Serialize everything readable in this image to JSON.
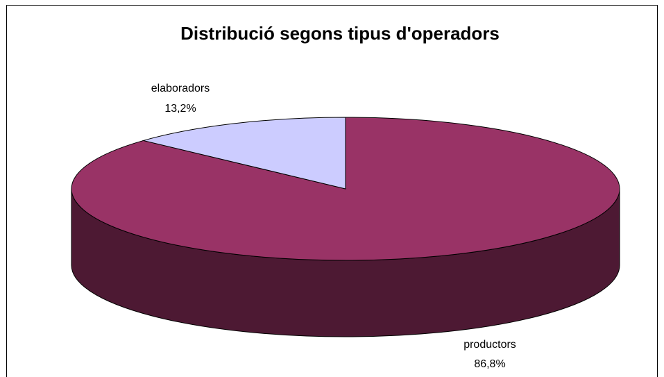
{
  "chart_data": {
    "type": "pie",
    "title": "Distribució segons tipus d'operadors",
    "categories": [
      "productors",
      "elaboradors"
    ],
    "values": [
      86.8,
      13.2
    ],
    "value_labels": [
      "86,8%",
      "13,2%"
    ],
    "colors": [
      "#993366",
      "#ccccff"
    ],
    "side_colors": [
      "#4d1933",
      "#66667f"
    ]
  }
}
